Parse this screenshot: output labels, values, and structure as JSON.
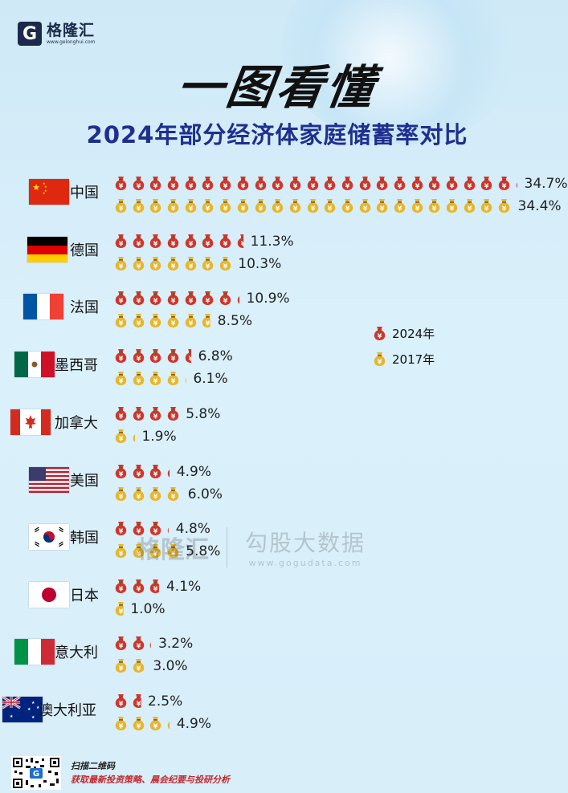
{
  "brand": {
    "name": "格隆汇",
    "url": "www.gelonghui.com"
  },
  "headline": "一图看懂",
  "chart_data": {
    "type": "bar",
    "title": "2024年部分经济体家庭储蓄率对比",
    "unit": "%",
    "categories": [
      "中国",
      "德国",
      "法国",
      "墨西哥",
      "加拿大",
      "美国",
      "韩国",
      "日本",
      "意大利",
      "澳大利亚"
    ],
    "series": [
      {
        "name": "2024年",
        "color": "#d0352b",
        "values": [
          34.7,
          11.3,
          10.9,
          6.8,
          5.8,
          4.9,
          4.8,
          4.1,
          3.2,
          2.5
        ],
        "labels": [
          "34.7%",
          "11.3%",
          "10.9%",
          "6.8%",
          "5.8%",
          "4.9%",
          "4.8%",
          "4.1%",
          "3.2%",
          "2.5%"
        ]
      },
      {
        "name": "2017年",
        "color": "#e8b62a",
        "values": [
          34.4,
          10.3,
          8.5,
          6.1,
          1.9,
          6.0,
          5.8,
          1.0,
          3.0,
          4.9
        ],
        "labels": [
          "34.4%",
          "10.3%",
          "8.5%",
          "6.1%",
          "1.9%",
          "6.0%",
          "5.8%",
          "1.0%",
          "3.0%",
          "4.9%"
        ]
      }
    ],
    "bag_unit_value": 1.5,
    "legend_position": "right"
  },
  "flags": [
    "china-flag-icon",
    "germany-flag-icon",
    "france-flag-icon",
    "mexico-flag-icon",
    "canada-flag-icon",
    "usa-flag-icon",
    "korea-flag-icon",
    "japan-flag-icon",
    "italy-flag-icon",
    "australia-flag-icon"
  ],
  "watermark": {
    "brand": "格隆汇",
    "name": "勾股大数据",
    "url": "www.gogudata.com"
  },
  "footer": {
    "line1": "扫描二维码",
    "line2": "获取最新投资策略、晨会纪要与投研分析"
  }
}
